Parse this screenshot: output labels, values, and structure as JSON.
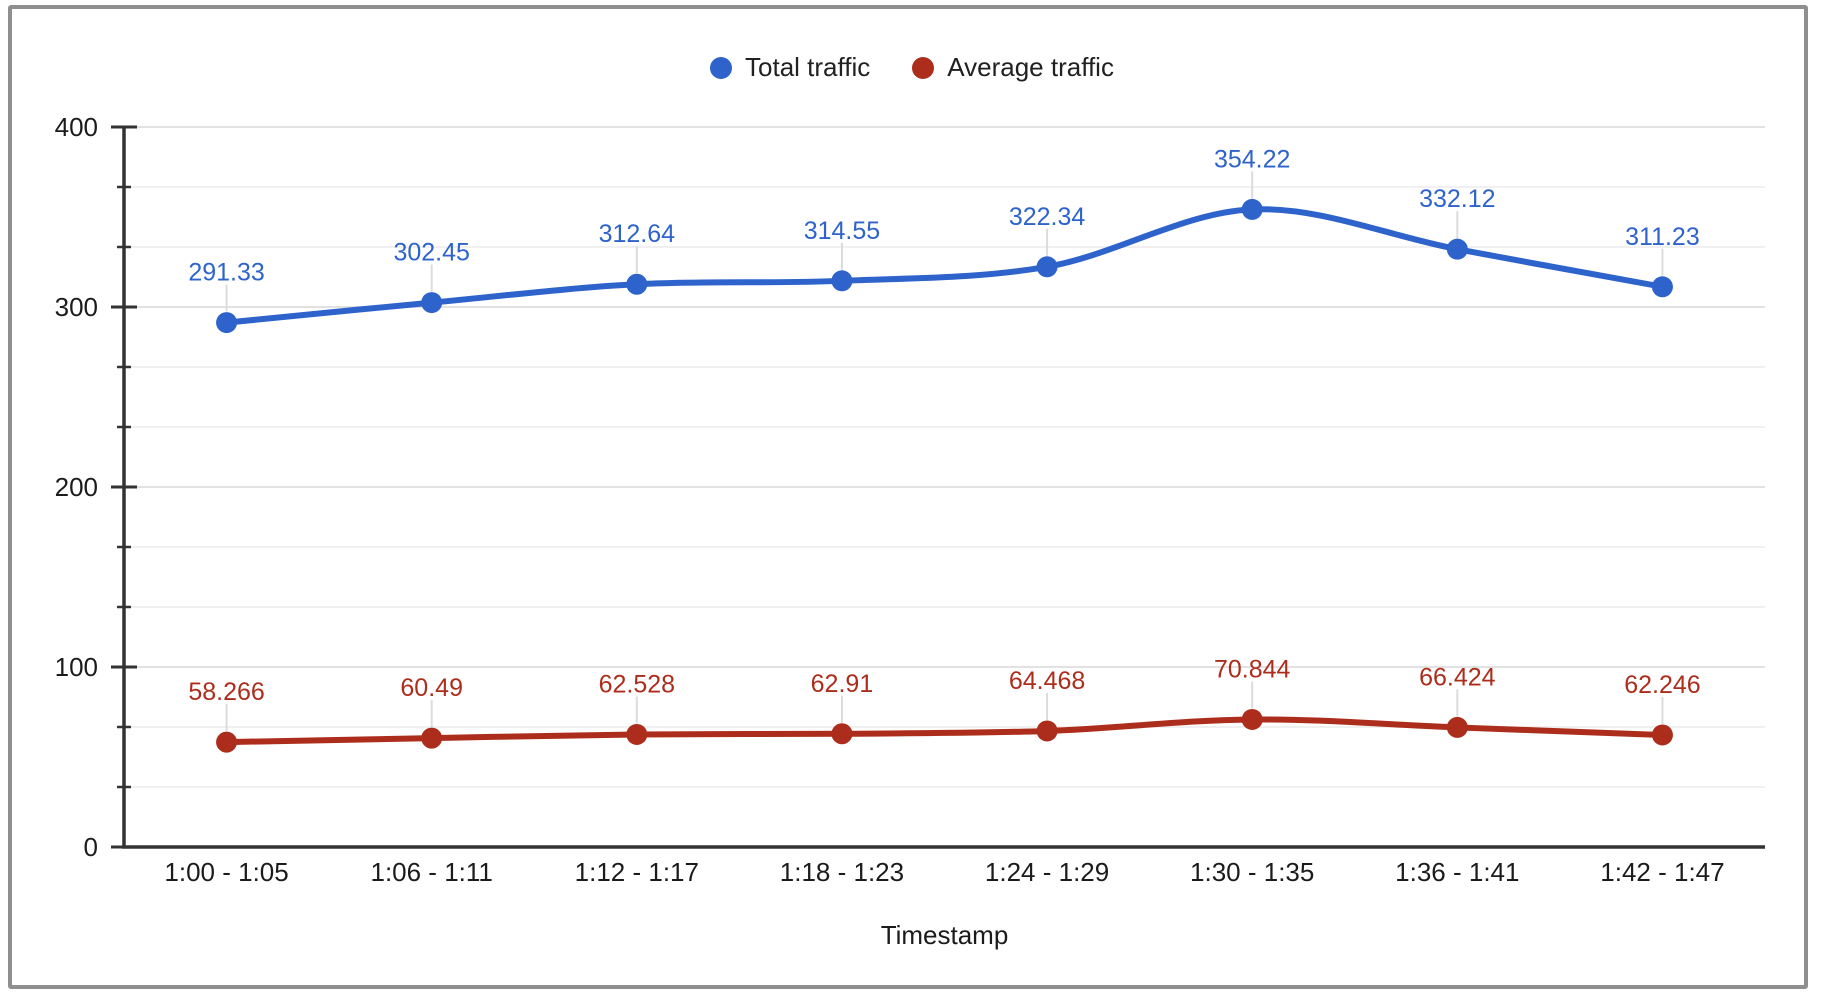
{
  "chart_data": {
    "type": "line",
    "smooth": true,
    "title": "",
    "xlabel": "Timestamp",
    "ylabel": "",
    "ylim": [
      0,
      400
    ],
    "yticks": [
      "0",
      "100",
      "200",
      "300",
      "400"
    ],
    "minor_gridlines_between_majors": 2,
    "grid": true,
    "legend_position": "top-center",
    "categories": [
      "1:00 - 1:05",
      "1:06 - 1:11",
      "1:12 - 1:17",
      "1:18 - 1:23",
      "1:24 - 1:29",
      "1:30 - 1:35",
      "1:36 - 1:41",
      "1:42 - 1:47"
    ],
    "series": [
      {
        "name": "Total traffic",
        "color": "#2e63cb",
        "values": [
          291.33,
          302.45,
          312.64,
          314.55,
          322.34,
          354.22,
          332.12,
          311.23
        ],
        "labels": [
          "291.33",
          "302.45",
          "312.64",
          "314.55",
          "322.34",
          "354.22",
          "332.12",
          "311.23"
        ]
      },
      {
        "name": "Average traffic",
        "color": "#ad2d1c",
        "values": [
          58.266,
          60.49,
          62.528,
          62.91,
          64.468,
          70.844,
          66.424,
          62.246
        ],
        "labels": [
          "58.266",
          "60.49",
          "62.528",
          "62.91",
          "64.468",
          "70.844",
          "66.424",
          "62.246"
        ]
      }
    ]
  },
  "colors": {
    "axis_line": "#333333",
    "tick_mark": "#333333",
    "tick_label": "#1b1b1b",
    "major_gridline": "#e2e2e2",
    "minor_gridline": "#f0f0f0",
    "leader_line": "#dcdcdc",
    "frame_border": "#8f8f8f",
    "legend_text": "#212121",
    "background": "#ffffff"
  }
}
